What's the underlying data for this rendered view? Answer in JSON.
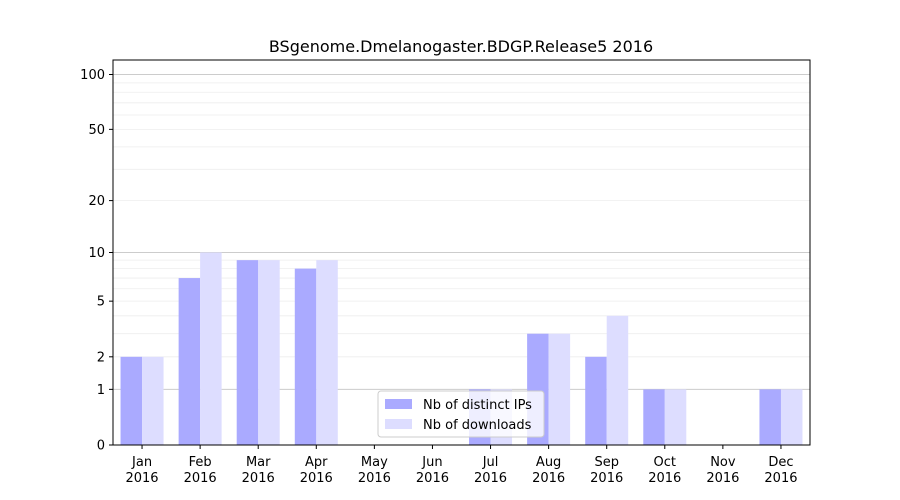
{
  "chart_data": {
    "type": "bar",
    "title": "BSgenome.Dmelanogaster.BDGP.Release5 2016",
    "xlabel": "",
    "ylabel": "",
    "yscale": "log1p",
    "ylim": [
      0,
      120
    ],
    "yticks": [
      0,
      1,
      2,
      5,
      10,
      20,
      50,
      100
    ],
    "categories": [
      [
        "Jan",
        "2016"
      ],
      [
        "Feb",
        "2016"
      ],
      [
        "Mar",
        "2016"
      ],
      [
        "Apr",
        "2016"
      ],
      [
        "May",
        "2016"
      ],
      [
        "Jun",
        "2016"
      ],
      [
        "Jul",
        "2016"
      ],
      [
        "Aug",
        "2016"
      ],
      [
        "Sep",
        "2016"
      ],
      [
        "Oct",
        "2016"
      ],
      [
        "Nov",
        "2016"
      ],
      [
        "Dec",
        "2016"
      ]
    ],
    "series": [
      {
        "name": "Nb of distinct IPs",
        "color": "#aaaaff",
        "values": [
          2,
          7,
          9,
          8,
          0,
          0,
          1,
          3,
          2,
          1,
          0,
          1
        ]
      },
      {
        "name": "Nb of downloads",
        "color": "#ddddff",
        "values": [
          2,
          10,
          9,
          9,
          0,
          0,
          1,
          3,
          4,
          1,
          0,
          1
        ]
      }
    ],
    "legend_position": "lower center",
    "grid": true
  }
}
